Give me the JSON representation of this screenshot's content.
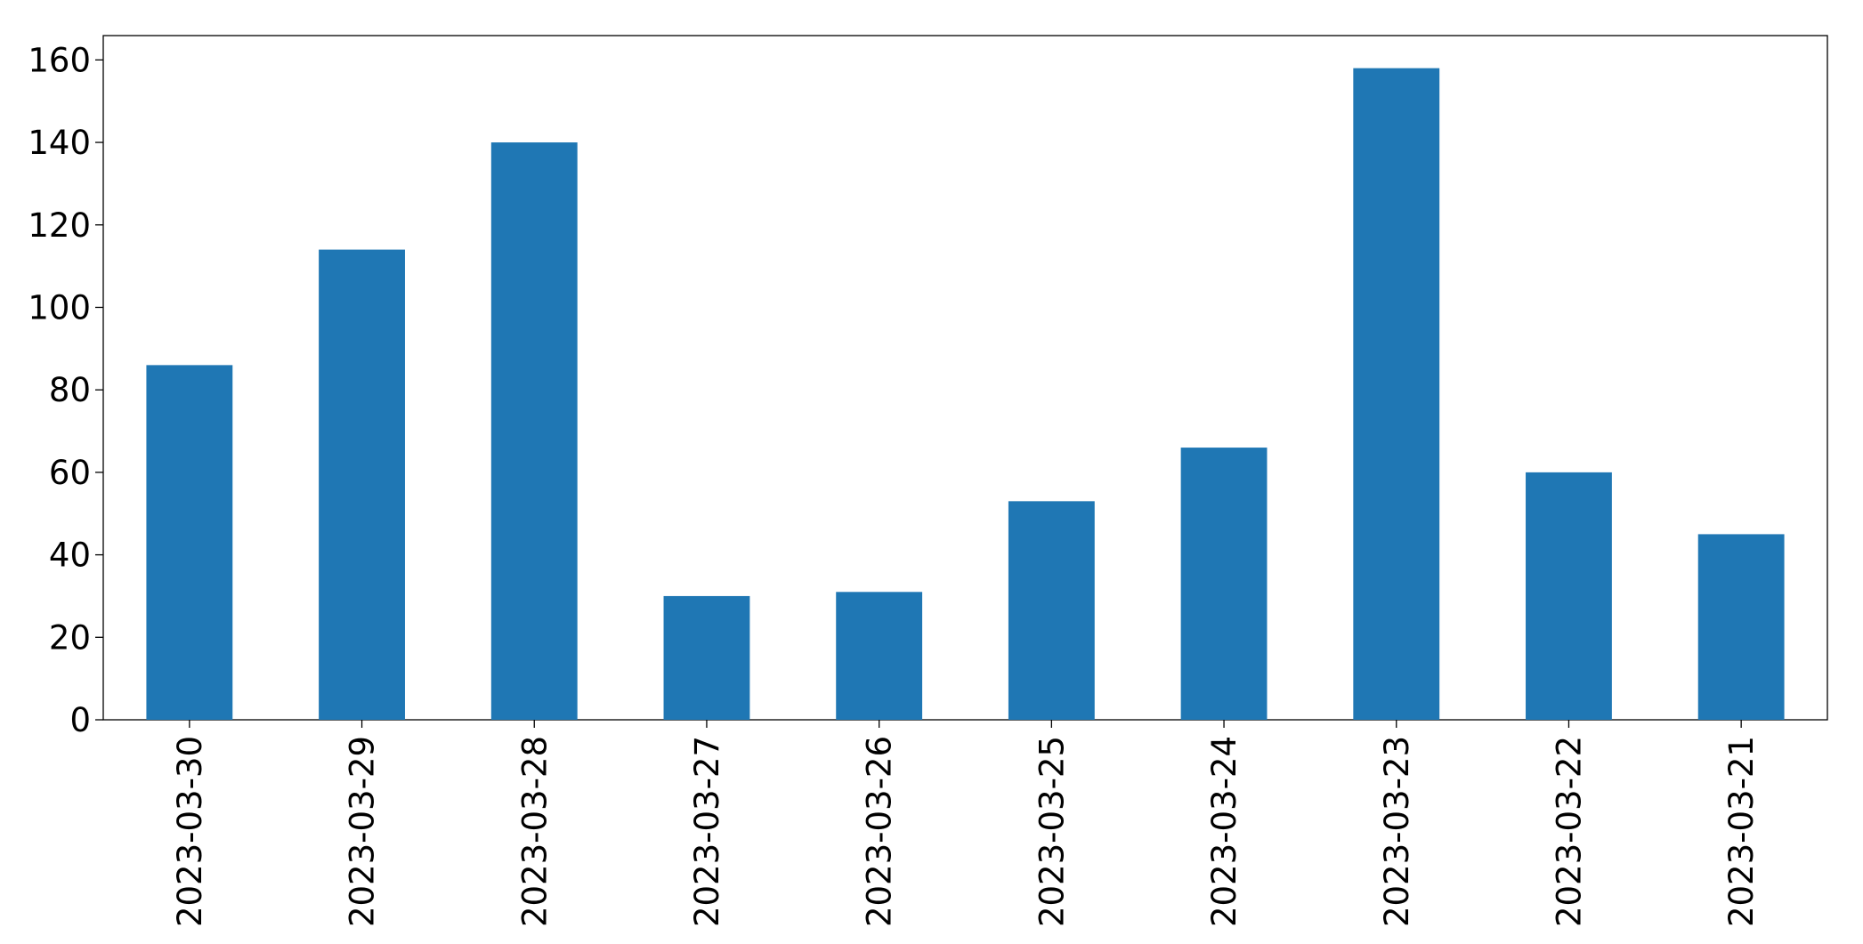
{
  "chart_data": {
    "type": "bar",
    "categories": [
      "2023-03-30",
      "2023-03-29",
      "2023-03-28",
      "2023-03-27",
      "2023-03-26",
      "2023-03-25",
      "2023-03-24",
      "2023-03-23",
      "2023-03-22",
      "2023-03-21"
    ],
    "values": [
      86,
      114,
      140,
      30,
      31,
      53,
      66,
      158,
      60,
      45
    ],
    "color": "#1f77b4",
    "ylim": [
      0,
      165.9
    ],
    "yticks": [
      0,
      20,
      40,
      60,
      80,
      100,
      120,
      140,
      160
    ],
    "grid": false
  }
}
